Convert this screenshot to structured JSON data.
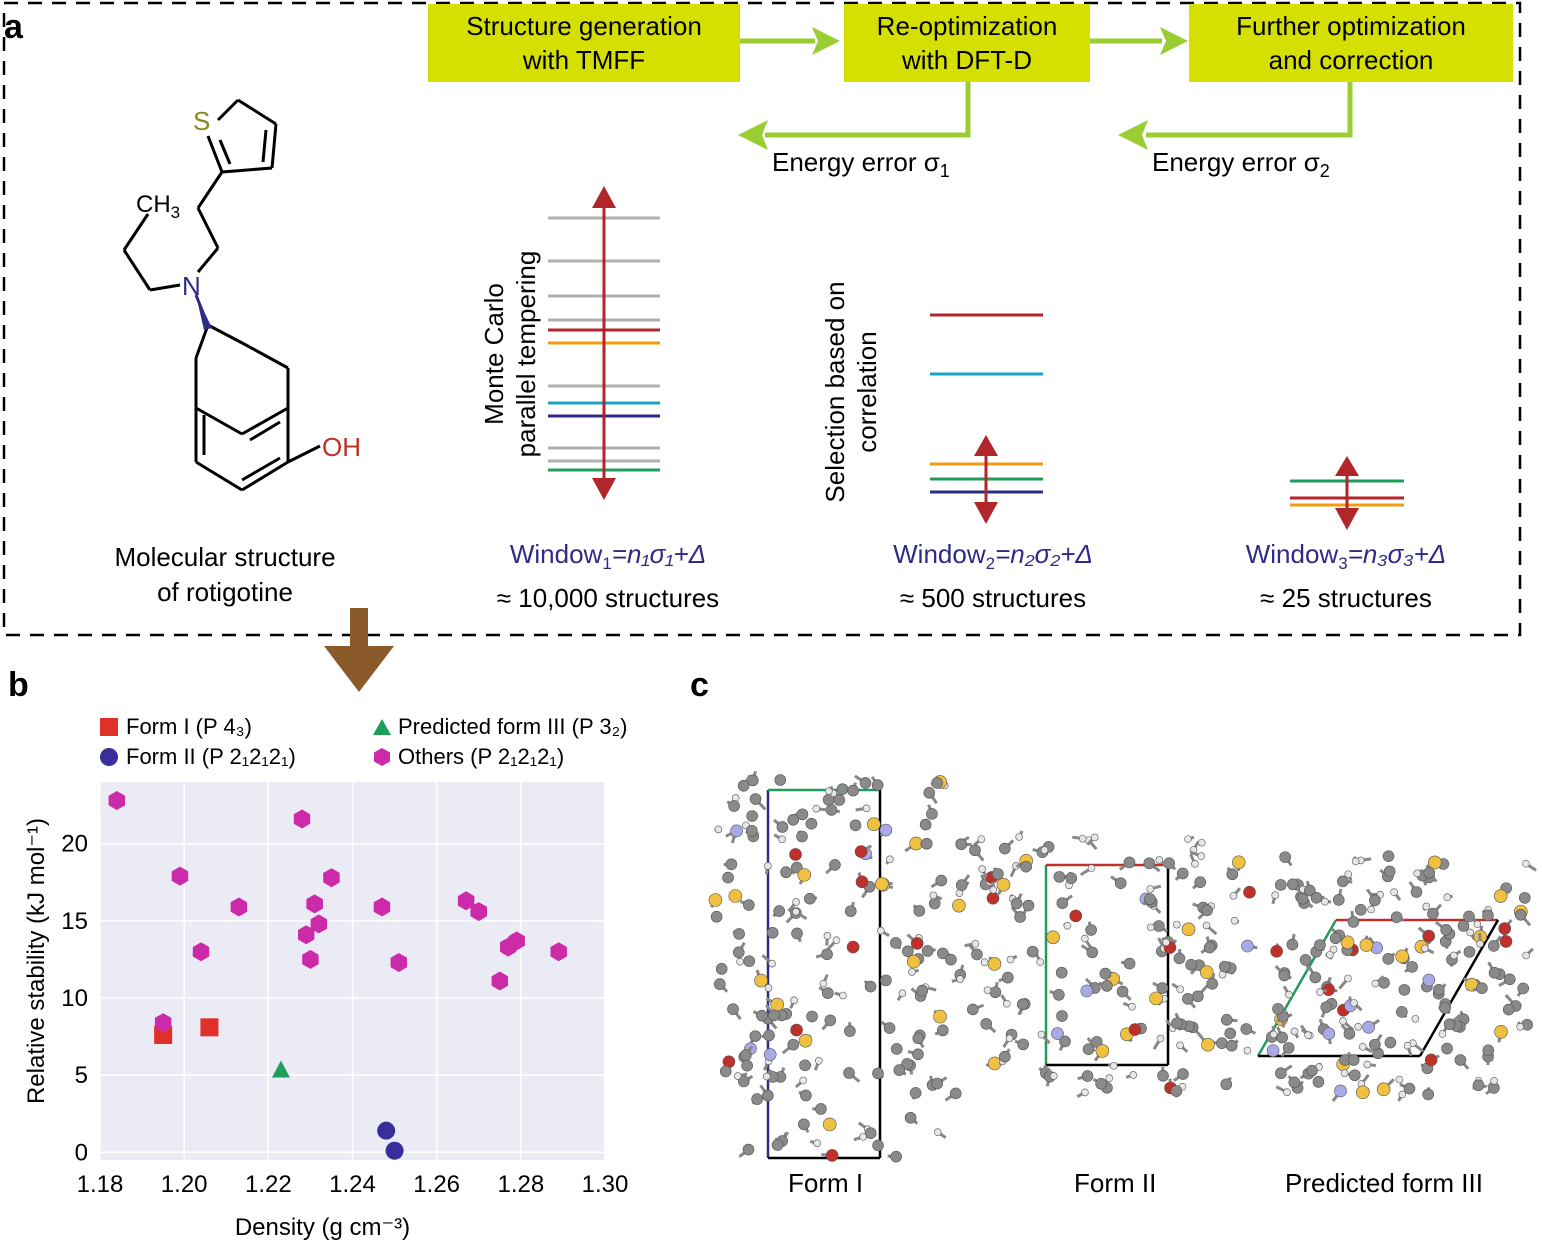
{
  "panels": {
    "a": "a",
    "b": "b",
    "c": "c"
  },
  "workflow": {
    "box1": [
      "Structure generation",
      "with TMFF"
    ],
    "box2": [
      "Re-optimization",
      "with DFT-D"
    ],
    "box3": [
      "Further optimization",
      "and correction"
    ],
    "error1": "Energy error σ",
    "error1_sub": "1",
    "error2": "Energy error σ",
    "error2_sub": "2"
  },
  "molecule": {
    "caption": [
      "Molecular structure",
      "of rotigotine"
    ],
    "atom_S": "S",
    "atom_N": "N",
    "atom_OH": "OH",
    "atom_CH": "CH",
    "atom_CH_sub": "3"
  },
  "windows": {
    "mc_label": [
      "Monte Carlo",
      "parallel tempering"
    ],
    "sel_label": [
      "Selection based on",
      "correlation"
    ],
    "w1": {
      "prefix": "Window",
      "sub": "1",
      "eq": "=n₁σ₁+Δ",
      "count": "≈ 10,000 structures"
    },
    "w2": {
      "prefix": "Window",
      "sub": "2",
      "eq": "=n₂σ₂+Δ",
      "count": "≈ 500 structures"
    },
    "w3": {
      "prefix": "Window",
      "sub": "3",
      "eq": "=n₃σ₃+Δ",
      "count": "≈ 25 structures"
    }
  },
  "colors": {
    "yellow": "#d6e000",
    "green_arrow": "#9acd32",
    "red": "#b0262b",
    "orange": "#f39c12",
    "cyan": "#1aa3c9",
    "navy": "#2f2a85",
    "green": "#1e9e5a",
    "grey": "#b0b0b0",
    "brown": "#8b5a2b"
  },
  "chart_data": {
    "type": "scatter",
    "xlabel": "Density (g cm⁻³)",
    "ylabel": "Relative stability (kJ mol⁻¹)",
    "xlim": [
      1.18,
      1.3
    ],
    "ylim": [
      -0.5,
      24
    ],
    "xticks": [
      "1.18",
      "1.20",
      "1.22",
      "1.24",
      "1.26",
      "1.28",
      "1.30"
    ],
    "yticks": [
      "0",
      "5",
      "10",
      "15",
      "20"
    ],
    "grid": true,
    "legend_position": "top",
    "series": [
      {
        "name": "Form I (P 4₃)",
        "marker": "square",
        "color": "#e0302a",
        "points": [
          [
            1.195,
            7.6
          ],
          [
            1.206,
            8.1
          ]
        ]
      },
      {
        "name": "Form II (P 2₁2₁2₁)",
        "marker": "circle",
        "color": "#3a2f9a",
        "points": [
          [
            1.248,
            1.4
          ],
          [
            1.25,
            0.1
          ]
        ]
      },
      {
        "name": "Predicted form III (P 3₂)",
        "marker": "triangle",
        "color": "#1e9e5a",
        "points": [
          [
            1.223,
            5.3
          ]
        ]
      },
      {
        "name": "Others (P 2₁2₁2₁)",
        "marker": "hexagon",
        "color": "#cc2aa8",
        "points": [
          [
            1.184,
            22.8
          ],
          [
            1.199,
            17.9
          ],
          [
            1.195,
            8.4
          ],
          [
            1.204,
            13.0
          ],
          [
            1.213,
            15.9
          ],
          [
            1.228,
            21.6
          ],
          [
            1.231,
            16.1
          ],
          [
            1.235,
            17.8
          ],
          [
            1.229,
            14.1
          ],
          [
            1.232,
            14.8
          ],
          [
            1.23,
            12.5
          ],
          [
            1.247,
            15.9
          ],
          [
            1.251,
            12.3
          ],
          [
            1.267,
            16.3
          ],
          [
            1.27,
            15.6
          ],
          [
            1.275,
            11.1
          ],
          [
            1.277,
            13.3
          ],
          [
            1.279,
            13.7
          ],
          [
            1.289,
            13.0
          ]
        ]
      }
    ]
  },
  "crystals": {
    "form1": "Form I",
    "form2": "Form II",
    "form3": "Predicted form III"
  }
}
